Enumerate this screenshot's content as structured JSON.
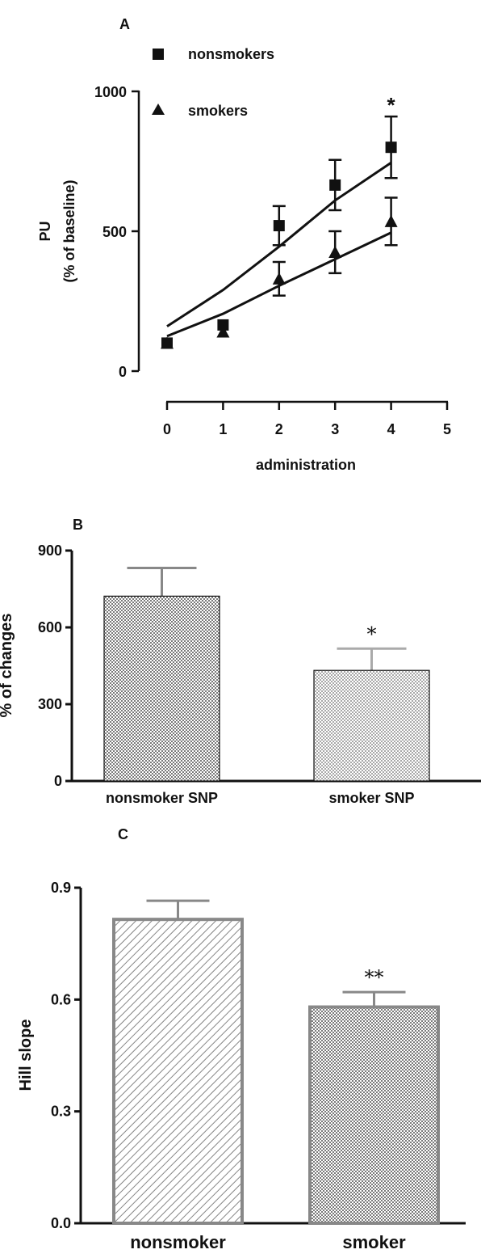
{
  "chart_data": [
    {
      "panel_label": "A",
      "type": "line",
      "xlabel": "administration",
      "ylabel": "PU",
      "ylabel_sub": "(% of baseline)",
      "xlim": [
        0,
        5
      ],
      "ylim": [
        0,
        1000
      ],
      "x_ticks": [
        "0",
        "1",
        "2",
        "3",
        "4",
        "5"
      ],
      "y_ticks": [
        "0",
        "500",
        "1000"
      ],
      "legend_position": "top-left",
      "grid": false,
      "annotation": "*",
      "annotation_x": 4,
      "series": [
        {
          "name": "nonsmokers",
          "marker": "square",
          "x": [
            0,
            1,
            2,
            3,
            4
          ],
          "y": [
            100,
            165,
            520,
            665,
            800
          ],
          "err": [
            0,
            0,
            70,
            90,
            110
          ],
          "fit": [
            160,
            290,
            445,
            610,
            745
          ]
        },
        {
          "name": "smokers",
          "marker": "triangle",
          "x": [
            0,
            1,
            2,
            3,
            4
          ],
          "y": [
            100,
            140,
            330,
            425,
            535
          ],
          "err": [
            0,
            0,
            60,
            75,
            85
          ],
          "fit": [
            125,
            205,
            305,
            400,
            495
          ]
        }
      ]
    },
    {
      "panel_label": "B",
      "type": "bar",
      "ylabel": "% of changes",
      "ylim": [
        0,
        900
      ],
      "y_ticks": [
        "0",
        "300",
        "600",
        "900"
      ],
      "categories": [
        "nonsmoker SNP",
        "smoker SNP"
      ],
      "values": [
        722,
        432
      ],
      "errors": [
        110,
        85
      ],
      "annotations": [
        "",
        "*"
      ]
    },
    {
      "panel_label": "C",
      "type": "bar",
      "ylabel": "Hill slope",
      "ylim": [
        0,
        0.9
      ],
      "y_ticks": [
        "0.0",
        "0.3",
        "0.6",
        "0.9"
      ],
      "categories": [
        "nonsmoker",
        "smoker"
      ],
      "values": [
        0.815,
        0.58
      ],
      "errors": [
        0.05,
        0.04
      ],
      "annotations": [
        "",
        "**"
      ]
    }
  ]
}
